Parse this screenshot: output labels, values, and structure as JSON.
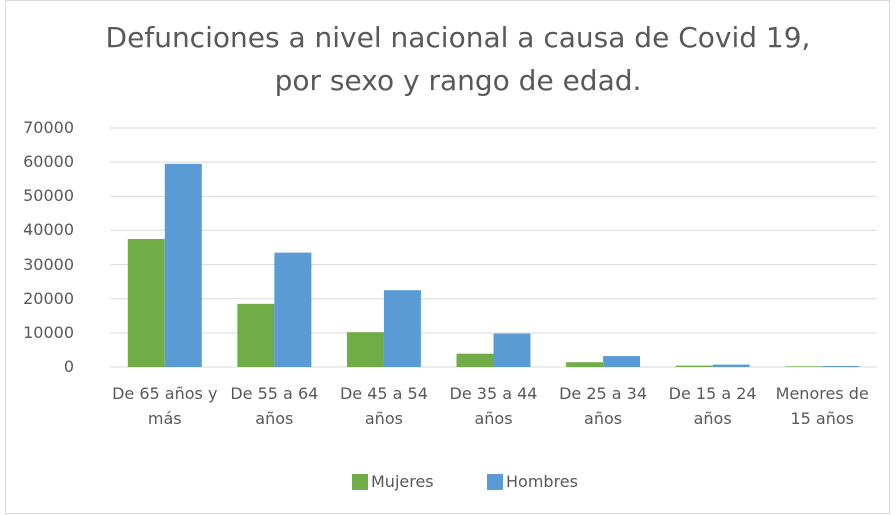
{
  "chart_data": {
    "type": "bar",
    "title": "Defunciones a nivel nacional a causa de Covid 19, por sexo y rango de edad.",
    "categories": [
      "De 65 años y más",
      "De 55 a 64 años",
      "De 45 a 54 años",
      "De 35 a 44 años",
      "De 25 a 34 años",
      "De 15 a 24 años",
      "Menores de 15 años"
    ],
    "series": [
      {
        "name": "Mujeres",
        "color": "#70ad47",
        "values": [
          37500,
          18500,
          10200,
          3900,
          1400,
          400,
          200
        ]
      },
      {
        "name": "Hombres",
        "color": "#5b9bd5",
        "values": [
          59500,
          33500,
          22500,
          9800,
          3200,
          700,
          300
        ]
      }
    ],
    "ylim": [
      0,
      70000
    ],
    "yticks": [
      0,
      10000,
      20000,
      30000,
      40000,
      50000,
      60000,
      70000
    ],
    "grid": true,
    "legend": "bottom"
  }
}
